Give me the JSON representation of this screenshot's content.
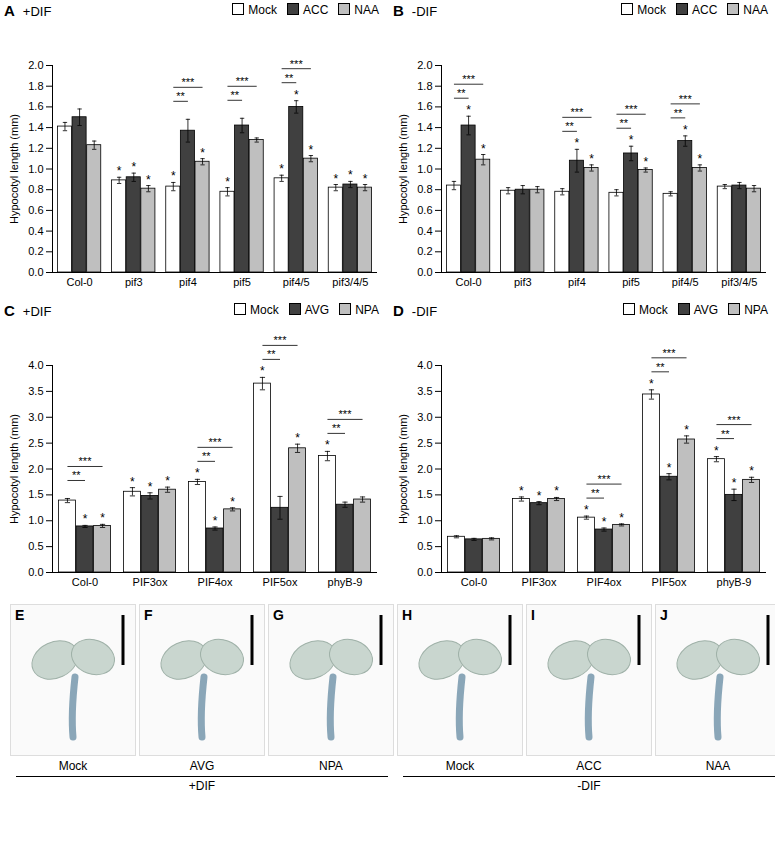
{
  "chart_data": [
    {
      "type": "bar",
      "panel": "A",
      "title": "+DIF",
      "y_label": "Hypocotyl length (mm)",
      "legend": "top-right",
      "categories": [
        "Col-0",
        "pif3",
        "pif4",
        "pif5",
        "pif4/5",
        "pif3/4/5"
      ],
      "series": [
        {
          "name": "Mock",
          "color": "#ffffff",
          "values": [
            1.41,
            0.89,
            0.83,
            0.78,
            0.91,
            0.82
          ],
          "errors": [
            0.04,
            0.03,
            0.04,
            0.04,
            0.03,
            0.03
          ],
          "significance": [
            null,
            "*",
            "*",
            "*",
            "*",
            "*"
          ]
        },
        {
          "name": "ACC",
          "color": "#404040",
          "values": [
            1.5,
            0.92,
            1.37,
            1.42,
            1.6,
            0.85
          ],
          "errors": [
            0.08,
            0.04,
            0.11,
            0.07,
            0.06,
            0.03
          ],
          "significance": [
            null,
            "*",
            null,
            null,
            "*",
            "*"
          ]
        },
        {
          "name": "NAA",
          "color": "#bfbfbf",
          "values": [
            1.23,
            0.81,
            1.07,
            1.28,
            1.1,
            0.82
          ],
          "errors": [
            0.04,
            0.03,
            0.03,
            0.02,
            0.03,
            0.03
          ],
          "significance": [
            null,
            "*",
            "*",
            null,
            "*",
            "*"
          ]
        }
      ],
      "comparisons": [
        {
          "category": "pif4",
          "from": "Mock",
          "to": "ACC",
          "label": "**"
        },
        {
          "category": "pif4",
          "from": "Mock",
          "to": "NAA",
          "label": "***"
        },
        {
          "category": "pif5",
          "from": "Mock",
          "to": "ACC",
          "label": "**"
        },
        {
          "category": "pif5",
          "from": "Mock",
          "to": "NAA",
          "label": "***"
        },
        {
          "category": "pif4/5",
          "from": "Mock",
          "to": "ACC",
          "label": "**"
        },
        {
          "category": "pif4/5",
          "from": "Mock",
          "to": "NAA",
          "label": "***"
        }
      ],
      "ylim": [
        0,
        2
      ],
      "yticks": [
        {
          "value": 0,
          "label": "0.0"
        },
        0.2,
        0.4,
        0.6,
        0.8,
        {
          "value": 1,
          "label": "1.0"
        },
        1.2,
        1.4,
        1.6,
        1.8,
        {
          "value": 2,
          "label": "2.0"
        }
      ]
    },
    {
      "type": "bar",
      "panel": "B",
      "title": "-DIF",
      "y_label": "Hypocotyl length (mm)",
      "legend": "top-right",
      "categories": [
        "Col-0",
        "pif3",
        "pif4",
        "pif5",
        "pif4/5",
        "pif3/4/5"
      ],
      "series": [
        {
          "name": "Mock",
          "color": "#ffffff",
          "values": [
            0.84,
            0.79,
            0.78,
            0.77,
            0.76,
            0.83
          ],
          "errors": [
            0.04,
            0.03,
            0.03,
            0.03,
            0.02,
            0.02
          ],
          "significance": [
            null,
            null,
            null,
            null,
            null,
            null
          ]
        },
        {
          "name": "ACC",
          "color": "#404040",
          "values": [
            1.42,
            0.8,
            1.08,
            1.15,
            1.27,
            0.84
          ],
          "errors": [
            0.09,
            0.04,
            0.11,
            0.07,
            0.05,
            0.03
          ],
          "significance": [
            "*",
            null,
            "*",
            "*",
            "*",
            null
          ]
        },
        {
          "name": "NAA",
          "color": "#bfbfbf",
          "values": [
            1.09,
            0.8,
            1.01,
            0.99,
            1.01,
            0.81
          ],
          "errors": [
            0.05,
            0.03,
            0.03,
            0.02,
            0.03,
            0.03
          ],
          "significance": [
            "*",
            null,
            "*",
            "*",
            "*",
            null
          ]
        }
      ],
      "comparisons": [
        {
          "category": "Col-0",
          "from": "Mock",
          "to": "ACC",
          "label": "**"
        },
        {
          "category": "Col-0",
          "from": "Mock",
          "to": "NAA",
          "label": "***"
        },
        {
          "category": "pif4",
          "from": "Mock",
          "to": "ACC",
          "label": "**"
        },
        {
          "category": "pif4",
          "from": "Mock",
          "to": "NAA",
          "label": "***"
        },
        {
          "category": "pif5",
          "from": "Mock",
          "to": "ACC",
          "label": "**"
        },
        {
          "category": "pif5",
          "from": "Mock",
          "to": "NAA",
          "label": "***"
        },
        {
          "category": "pif4/5",
          "from": "Mock",
          "to": "ACC",
          "label": "**"
        },
        {
          "category": "pif4/5",
          "from": "Mock",
          "to": "NAA",
          "label": "***"
        }
      ],
      "ylim": [
        0,
        2
      ],
      "yticks": [
        {
          "value": 0,
          "label": "0.0"
        },
        0.2,
        0.4,
        0.6,
        0.8,
        {
          "value": 1,
          "label": "1.0"
        },
        1.2,
        1.4,
        1.6,
        1.8,
        {
          "value": 2,
          "label": "2.0"
        }
      ]
    },
    {
      "type": "bar",
      "panel": "C",
      "title": "+DIF",
      "y_label": "Hypocotyl length (mm)",
      "legend": "top-right",
      "categories": [
        "Col-0",
        "PIF3ox",
        "PIF4ox",
        "PIF5ox",
        "phyB-9"
      ],
      "series": [
        {
          "name": "Mock",
          "color": "#ffffff",
          "values": [
            1.39,
            1.56,
            1.75,
            3.65,
            2.25
          ],
          "errors": [
            0.04,
            0.08,
            0.05,
            0.12,
            0.09
          ],
          "significance": [
            null,
            "*",
            "*",
            "*",
            "*"
          ]
        },
        {
          "name": "AVG",
          "color": "#404040",
          "values": [
            0.89,
            1.48,
            0.85,
            1.25,
            1.31
          ],
          "errors": [
            0.02,
            0.06,
            0.03,
            0.22,
            0.05
          ],
          "significance": [
            "*",
            "*",
            "*",
            null,
            null
          ]
        },
        {
          "name": "NPA",
          "color": "#bfbfbf",
          "values": [
            0.9,
            1.6,
            1.22,
            2.4,
            1.41
          ],
          "errors": [
            0.03,
            0.05,
            0.03,
            0.08,
            0.05
          ],
          "significance": [
            "*",
            "*",
            "*",
            "*",
            null
          ]
        }
      ],
      "comparisons": [
        {
          "category": "Col-0",
          "from": "Mock",
          "to": "AVG",
          "label": "**"
        },
        {
          "category": "Col-0",
          "from": "Mock",
          "to": "NPA",
          "label": "***"
        },
        {
          "category": "PIF4ox",
          "from": "Mock",
          "to": "AVG",
          "label": "**"
        },
        {
          "category": "PIF4ox",
          "from": "Mock",
          "to": "NPA",
          "label": "***"
        },
        {
          "category": "PIF5ox",
          "from": "Mock",
          "to": "AVG",
          "label": "**"
        },
        {
          "category": "PIF5ox",
          "from": "Mock",
          "to": "NPA",
          "label": "***"
        },
        {
          "category": "phyB-9",
          "from": "Mock",
          "to": "AVG",
          "label": "**"
        },
        {
          "category": "phyB-9",
          "from": "Mock",
          "to": "NPA",
          "label": "***"
        }
      ],
      "ylim": [
        0,
        4
      ],
      "yticks": [
        {
          "value": 0,
          "label": "0.0"
        },
        0.5,
        {
          "value": 1,
          "label": "1.0"
        },
        1.5,
        {
          "value": 2,
          "label": "2.0"
        },
        2.5,
        {
          "value": 3,
          "label": "3.0"
        },
        3.5,
        {
          "value": 4,
          "label": "4.0"
        }
      ]
    },
    {
      "type": "bar",
      "panel": "D",
      "title": "-DIF",
      "y_label": "Hypocotyl length (mm)",
      "legend": "top-right",
      "categories": [
        "Col-0",
        "PIF3ox",
        "PIF4ox",
        "PIF5ox",
        "phyB-9"
      ],
      "series": [
        {
          "name": "Mock",
          "color": "#ffffff",
          "values": [
            0.69,
            1.42,
            1.06,
            3.44,
            2.19
          ],
          "errors": [
            0.02,
            0.04,
            0.03,
            0.09,
            0.05
          ],
          "significance": [
            null,
            "*",
            "*",
            "*",
            "*"
          ]
        },
        {
          "name": "AVG",
          "color": "#404040",
          "values": [
            0.64,
            1.34,
            0.83,
            1.85,
            1.5
          ],
          "errors": [
            0.02,
            0.03,
            0.03,
            0.06,
            0.11
          ],
          "significance": [
            null,
            "*",
            "*",
            "*",
            "*"
          ]
        },
        {
          "name": "NPA",
          "color": "#bfbfbf",
          "values": [
            0.65,
            1.42,
            0.92,
            2.57,
            1.79
          ],
          "errors": [
            0.02,
            0.03,
            0.02,
            0.07,
            0.05
          ],
          "significance": [
            null,
            "*",
            "*",
            "*",
            "*"
          ]
        }
      ],
      "comparisons": [
        {
          "category": "PIF4ox",
          "from": "Mock",
          "to": "AVG",
          "label": "**"
        },
        {
          "category": "PIF4ox",
          "from": "Mock",
          "to": "NPA",
          "label": "***"
        },
        {
          "category": "PIF5ox",
          "from": "Mock",
          "to": "AVG",
          "label": "**"
        },
        {
          "category": "PIF5ox",
          "from": "Mock",
          "to": "NPA",
          "label": "***"
        },
        {
          "category": "phyB-9",
          "from": "Mock",
          "to": "AVG",
          "label": "**"
        },
        {
          "category": "phyB-9",
          "from": "Mock",
          "to": "NPA",
          "label": "***"
        }
      ],
      "ylim": [
        0,
        4
      ],
      "yticks": [
        {
          "value": 0,
          "label": "0.0"
        },
        0.5,
        {
          "value": 1,
          "label": "1.0"
        },
        1.5,
        {
          "value": 2,
          "label": "2.0"
        },
        2.5,
        {
          "value": 3,
          "label": "3.0"
        },
        3.5,
        {
          "value": 4,
          "label": "4.0"
        }
      ]
    }
  ],
  "image_panels": [
    {
      "panel": "E",
      "label": "Mock"
    },
    {
      "panel": "F",
      "label": "AVG"
    },
    {
      "panel": "G",
      "label": "NPA"
    },
    {
      "panel": "H",
      "label": "Mock"
    },
    {
      "panel": "I",
      "label": "ACC"
    },
    {
      "panel": "J",
      "label": "NAA"
    }
  ],
  "image_groups": [
    {
      "label": "+DIF",
      "panels": [
        "E",
        "F",
        "G"
      ]
    },
    {
      "label": "-DIF",
      "panels": [
        "H",
        "I",
        "J"
      ]
    }
  ]
}
